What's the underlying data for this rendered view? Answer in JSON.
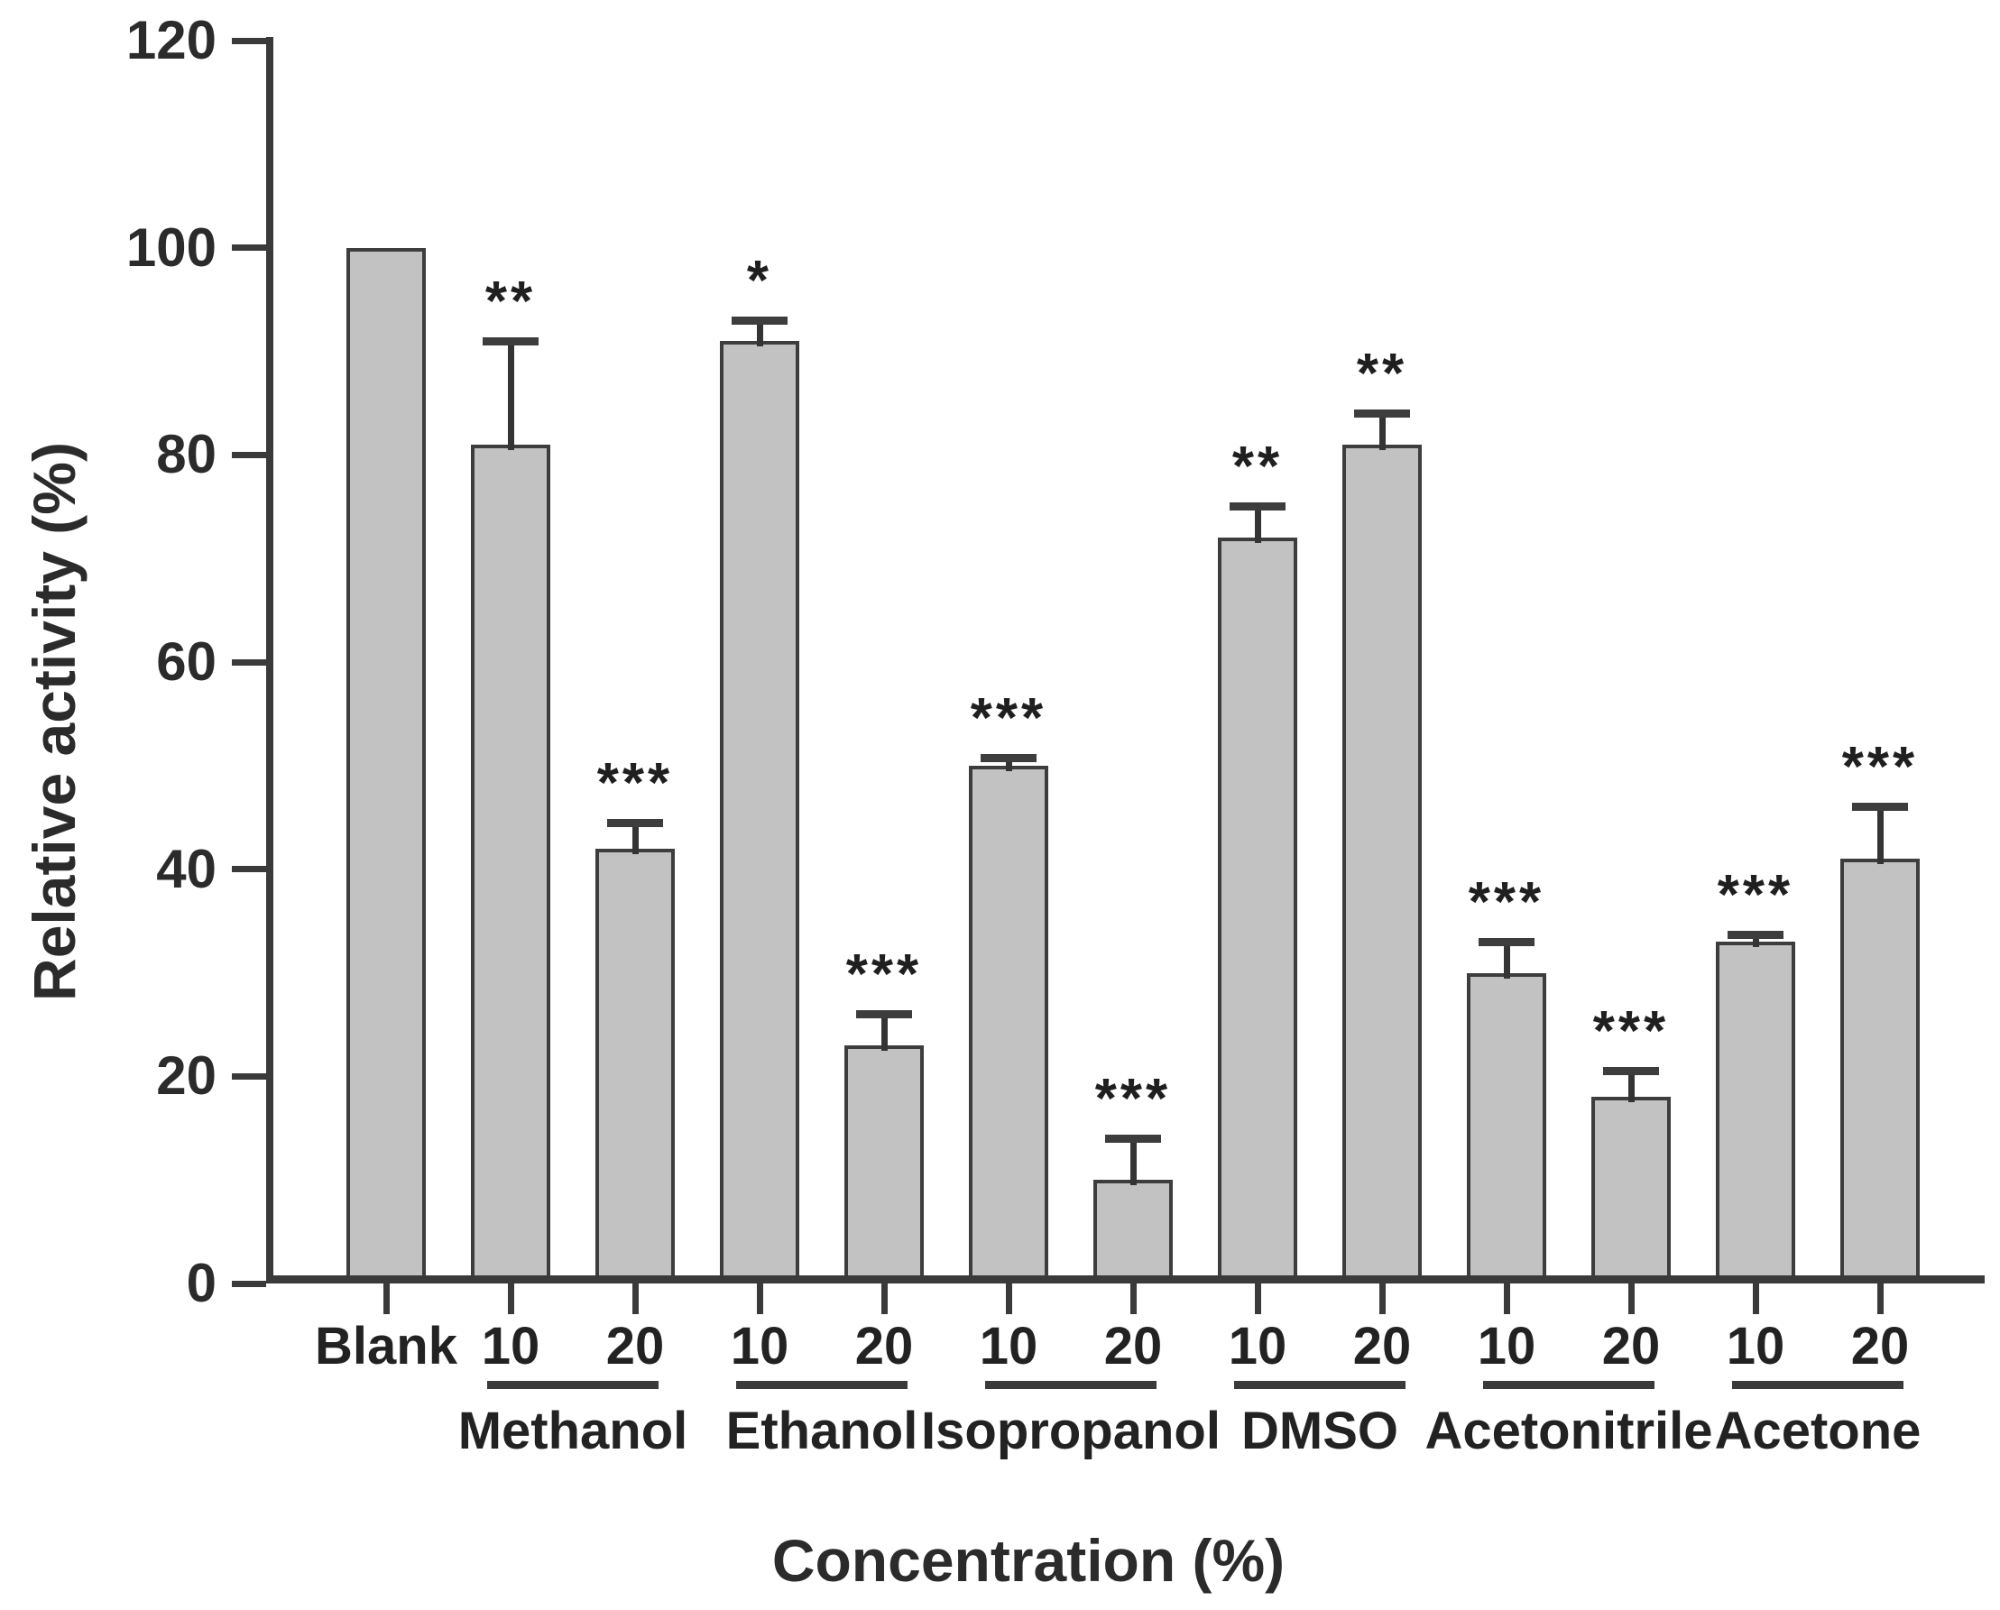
{
  "figure": {
    "background": "#ffffff"
  },
  "chart_data": {
    "type": "bar",
    "title": "",
    "xlabel": "Concentration (%)",
    "ylabel": "Relative activity (%)",
    "ylim": [
      0,
      120
    ],
    "yticks": [
      0,
      20,
      40,
      60,
      80,
      100,
      120
    ],
    "grid": false,
    "legend": false,
    "categories": [
      "Blank",
      "10",
      "20",
      "10",
      "20",
      "10",
      "20",
      "10",
      "20",
      "10",
      "20",
      "10",
      "20"
    ],
    "values": [
      100,
      81,
      42,
      91,
      23,
      50,
      10,
      72,
      81,
      30,
      18,
      33,
      41
    ],
    "errors": [
      0,
      10,
      2.5,
      2,
      3,
      0.7,
      4,
      3,
      3,
      3,
      2.5,
      0.7,
      5
    ],
    "significance": [
      "",
      "**",
      "***",
      "*",
      "***",
      "***",
      "***",
      "**",
      "**",
      "***",
      "***",
      "***",
      "***"
    ],
    "groups": [
      {
        "label": "Methanol",
        "slots": [
          1,
          2
        ]
      },
      {
        "label": "Ethanol",
        "slots": [
          3,
          4
        ]
      },
      {
        "label": "Isopropanol",
        "slots": [
          5,
          6
        ]
      },
      {
        "label": "DMSO",
        "slots": [
          7,
          8
        ]
      },
      {
        "label": "Acetonitrile",
        "slots": [
          9,
          10
        ]
      },
      {
        "label": "Acetone",
        "slots": [
          11,
          12
        ]
      }
    ],
    "colors": {
      "bar_fill": "#c2c2c2",
      "bar_border": "#3d3d3d",
      "axis": "#3a3a3a",
      "text": "#262626"
    }
  }
}
